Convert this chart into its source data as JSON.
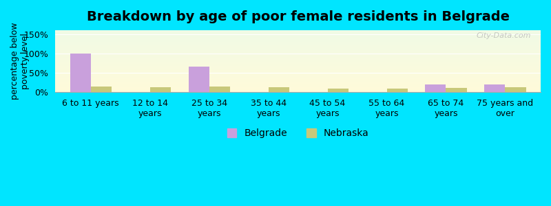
{
  "title": "Breakdown by age of poor female residents in Belgrade",
  "categories": [
    "6 to 11 years",
    "12 to 14\nyears",
    "25 to 34\nyears",
    "35 to 44\nyears",
    "45 to 54\nyears",
    "55 to 64\nyears",
    "65 to 74\nyears",
    "75 years and\nover"
  ],
  "belgrade_values": [
    100,
    0,
    66,
    0,
    0,
    0,
    20,
    20
  ],
  "nebraska_values": [
    14,
    12,
    14,
    12,
    8,
    8,
    10,
    13
  ],
  "belgrade_color": "#c9a0dc",
  "nebraska_color": "#c8c87a",
  "ylabel": "percentage below\npoverty level",
  "ylim": [
    0,
    160
  ],
  "yticks": [
    0,
    50,
    100,
    150
  ],
  "ytick_labels": [
    "0%",
    "50%",
    "100%",
    "150%"
  ],
  "outer_background": "#00e5ff",
  "watermark": "City-Data.com",
  "bar_width": 0.35,
  "title_fontsize": 14,
  "axis_fontsize": 9,
  "legend_fontsize": 10,
  "legend_labels": [
    "Belgrade",
    "Nebraska"
  ]
}
